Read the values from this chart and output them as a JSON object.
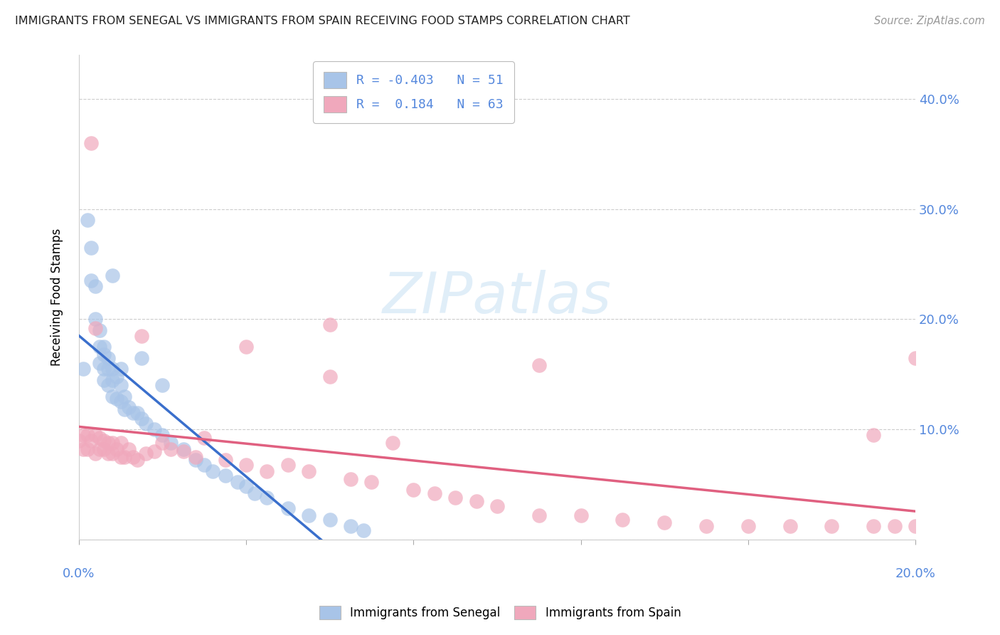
{
  "title": "IMMIGRANTS FROM SENEGAL VS IMMIGRANTS FROM SPAIN RECEIVING FOOD STAMPS CORRELATION CHART",
  "source": "Source: ZipAtlas.com",
  "ylabel": "Receiving Food Stamps",
  "ytick_vals": [
    0.0,
    0.1,
    0.2,
    0.3,
    0.4
  ],
  "ytick_labels": [
    "",
    "10.0%",
    "20.0%",
    "30.0%",
    "40.0%"
  ],
  "xlim": [
    0.0,
    0.2
  ],
  "ylim": [
    0.0,
    0.44
  ],
  "legend_line1": "R = -0.403   N = 51",
  "legend_line2": "R =  0.184   N = 63",
  "watermark": "ZIPatlas",
  "color_senegal": "#a8c4e8",
  "color_spain": "#f0a8bc",
  "line_senegal": "#3a6fcc",
  "line_spain": "#e06080",
  "senegal_x": [
    0.001,
    0.002,
    0.003,
    0.003,
    0.004,
    0.004,
    0.005,
    0.005,
    0.005,
    0.006,
    0.006,
    0.006,
    0.006,
    0.007,
    0.007,
    0.007,
    0.008,
    0.008,
    0.008,
    0.009,
    0.009,
    0.01,
    0.01,
    0.011,
    0.011,
    0.012,
    0.013,
    0.014,
    0.015,
    0.016,
    0.018,
    0.02,
    0.022,
    0.025,
    0.028,
    0.03,
    0.032,
    0.035,
    0.038,
    0.04,
    0.042,
    0.045,
    0.05,
    0.055,
    0.06,
    0.065,
    0.068,
    0.015,
    0.02,
    0.008,
    0.01
  ],
  "senegal_y": [
    0.155,
    0.29,
    0.265,
    0.235,
    0.23,
    0.2,
    0.19,
    0.175,
    0.16,
    0.175,
    0.168,
    0.155,
    0.145,
    0.165,
    0.155,
    0.14,
    0.155,
    0.145,
    0.13,
    0.148,
    0.128,
    0.14,
    0.125,
    0.13,
    0.118,
    0.12,
    0.115,
    0.115,
    0.11,
    0.105,
    0.1,
    0.095,
    0.088,
    0.082,
    0.072,
    0.068,
    0.062,
    0.058,
    0.052,
    0.048,
    0.042,
    0.038,
    0.028,
    0.022,
    0.018,
    0.012,
    0.008,
    0.165,
    0.14,
    0.24,
    0.155
  ],
  "spain_x": [
    0.0,
    0.001,
    0.001,
    0.002,
    0.002,
    0.003,
    0.003,
    0.004,
    0.004,
    0.005,
    0.005,
    0.006,
    0.006,
    0.007,
    0.007,
    0.008,
    0.008,
    0.009,
    0.01,
    0.01,
    0.011,
    0.012,
    0.013,
    0.014,
    0.016,
    0.018,
    0.02,
    0.022,
    0.025,
    0.028,
    0.03,
    0.035,
    0.04,
    0.045,
    0.05,
    0.055,
    0.06,
    0.065,
    0.07,
    0.075,
    0.08,
    0.085,
    0.09,
    0.095,
    0.1,
    0.11,
    0.12,
    0.13,
    0.14,
    0.15,
    0.16,
    0.17,
    0.18,
    0.19,
    0.195,
    0.2,
    0.004,
    0.06,
    0.015,
    0.04,
    0.11,
    0.19,
    0.2
  ],
  "spain_y": [
    0.09,
    0.095,
    0.082,
    0.095,
    0.082,
    0.36,
    0.09,
    0.095,
    0.078,
    0.092,
    0.082,
    0.09,
    0.082,
    0.088,
    0.078,
    0.088,
    0.078,
    0.082,
    0.088,
    0.075,
    0.075,
    0.082,
    0.075,
    0.072,
    0.078,
    0.08,
    0.088,
    0.082,
    0.08,
    0.075,
    0.092,
    0.072,
    0.068,
    0.062,
    0.068,
    0.062,
    0.148,
    0.055,
    0.052,
    0.088,
    0.045,
    0.042,
    0.038,
    0.035,
    0.03,
    0.158,
    0.022,
    0.018,
    0.015,
    0.012,
    0.012,
    0.012,
    0.012,
    0.012,
    0.012,
    0.012,
    0.192,
    0.195,
    0.185,
    0.175,
    0.022,
    0.095,
    0.165
  ]
}
